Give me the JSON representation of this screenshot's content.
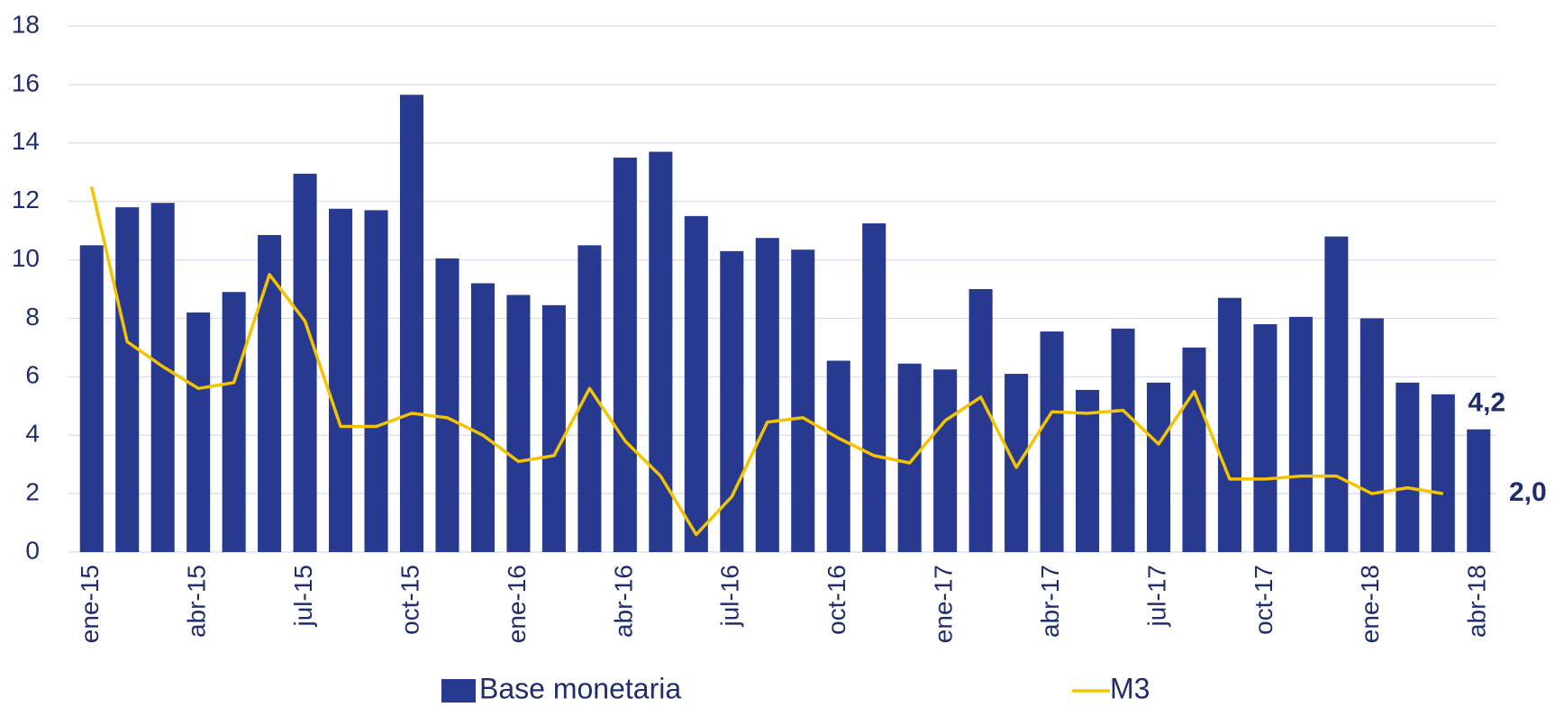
{
  "chart_data": {
    "type": "bar_line",
    "categories": [
      "ene-15",
      null,
      null,
      "abr-15",
      null,
      null,
      "jul-15",
      null,
      null,
      "oct-15",
      null,
      null,
      "ene-16",
      null,
      null,
      "abr-16",
      null,
      null,
      "jul-16",
      null,
      null,
      "oct-16",
      null,
      null,
      "ene-17",
      null,
      null,
      "abr-17",
      null,
      null,
      "jul-17",
      null,
      null,
      "oct-17",
      null,
      null,
      "ene-18",
      null,
      null,
      "abr-18"
    ],
    "series": [
      {
        "name": "Base monetaria",
        "type": "bar",
        "color": "#283a8f",
        "values": [
          10.5,
          11.8,
          11.95,
          8.2,
          8.9,
          10.85,
          12.95,
          11.75,
          11.7,
          15.65,
          10.05,
          9.2,
          8.8,
          8.45,
          10.5,
          13.5,
          13.7,
          11.5,
          10.3,
          10.75,
          10.35,
          6.55,
          11.25,
          6.45,
          6.25,
          9.0,
          6.1,
          7.55,
          5.55,
          7.65,
          5.8,
          7.0,
          8.7,
          7.8,
          8.05,
          10.8,
          8.0,
          5.8,
          5.4,
          4.2
        ],
        "value_labels": [
          null,
          null,
          null,
          null,
          null,
          null,
          null,
          null,
          null,
          null,
          null,
          null,
          null,
          null,
          null,
          null,
          null,
          null,
          null,
          null,
          null,
          null,
          null,
          null,
          null,
          null,
          null,
          null,
          null,
          null,
          null,
          null,
          null,
          null,
          null,
          null,
          null,
          null,
          null,
          "4,2"
        ]
      },
      {
        "name": "M3",
        "type": "line",
        "color": "#f5c400",
        "values": [
          12.5,
          7.2,
          6.35,
          5.6,
          5.8,
          9.5,
          7.9,
          4.3,
          4.3,
          4.75,
          4.6,
          4.0,
          3.1,
          3.3,
          5.6,
          3.8,
          2.6,
          0.6,
          1.9,
          4.45,
          4.6,
          3.9,
          3.3,
          3.05,
          4.5,
          5.3,
          2.9,
          4.8,
          4.75,
          4.85,
          3.7,
          5.5,
          2.5,
          2.5,
          2.6,
          2.6,
          2.0,
          2.2,
          2.0,
          null
        ],
        "value_labels": [
          null,
          null,
          null,
          null,
          null,
          null,
          null,
          null,
          null,
          null,
          null,
          null,
          null,
          null,
          null,
          null,
          null,
          null,
          null,
          null,
          null,
          null,
          null,
          null,
          null,
          null,
          null,
          null,
          null,
          null,
          null,
          null,
          null,
          null,
          null,
          null,
          null,
          null,
          "2,0",
          null
        ]
      }
    ],
    "ylim": [
      0,
      18
    ],
    "yticks": [
      0,
      2,
      4,
      6,
      8,
      10,
      12,
      14,
      16,
      18
    ],
    "grid": true,
    "legend": "bottom"
  }
}
